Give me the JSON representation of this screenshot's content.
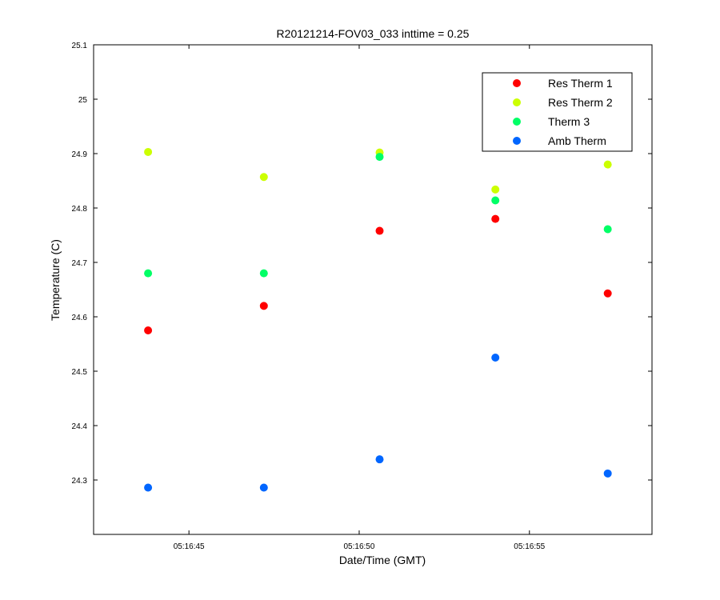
{
  "chart_data": {
    "type": "scatter",
    "title": "R20121214-FOV03_033 inttime = 0.25",
    "xlabel": "Date/Time (GMT)",
    "ylabel": "Temperature (C)",
    "xlim": [
      "05:16:42.2",
      "05:16:58.6"
    ],
    "ylim": [
      24.2,
      25.1
    ],
    "x_ticks": [
      "05:16:45",
      "05:16:50",
      "05:16:55"
    ],
    "y_ticks": [
      "24.3",
      "24.4",
      "24.5",
      "24.6",
      "24.7",
      "24.8",
      "24.9",
      "25",
      "25.1"
    ],
    "grid": false,
    "legend_position": "top-right",
    "x": [
      "05:16:43.8",
      "05:16:47.2",
      "05:16:50.6",
      "05:16:54.0",
      "05:16:57.3"
    ],
    "series": [
      {
        "name": "Res Therm 1",
        "color": "#ff0000",
        "values": [
          24.575,
          24.62,
          24.758,
          24.78,
          24.643
        ]
      },
      {
        "name": "Res Therm 2",
        "color": "#ccff00",
        "values": [
          24.903,
          24.857,
          24.902,
          24.834,
          24.88
        ]
      },
      {
        "name": "Therm 3",
        "color": "#00ff66",
        "values": [
          24.68,
          24.68,
          24.894,
          24.814,
          24.761
        ]
      },
      {
        "name": "Amb Therm",
        "color": "#0066ff",
        "values": [
          24.286,
          24.286,
          24.338,
          24.525,
          24.312
        ]
      }
    ]
  }
}
